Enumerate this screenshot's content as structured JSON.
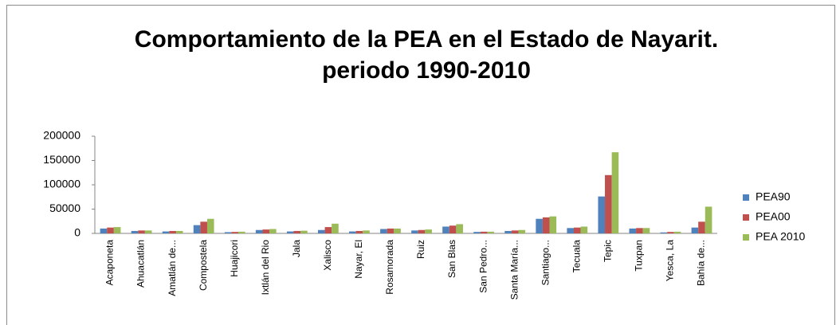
{
  "chart_data": {
    "type": "bar",
    "title": "Comportamiento de la PEA en el Estado de Nayarit.",
    "subtitle": "periodo 1990-2010",
    "categories": [
      "Acaponeta",
      "Ahuacatlán",
      "Amatlán de...",
      "Compostela",
      "Huajicori",
      "Ixtlán del Rio",
      "Jala",
      "Xalisco",
      "Nayar, El",
      "Rosamorada",
      "Ruiz",
      "San Blas",
      "San Pedro...",
      "Santa María...",
      "Santiago...",
      "Tecuala",
      "Tepic",
      "Tuxpan",
      "Yesca, La",
      "Bahía de..."
    ],
    "series": [
      {
        "name": "PEA90",
        "color": "#4f81bd",
        "values": [
          10000,
          5000,
          4000,
          17000,
          2500,
          7000,
          4000,
          7000,
          4000,
          9000,
          6000,
          14000,
          3000,
          5000,
          30000,
          11000,
          76000,
          10000,
          2000,
          12000
        ]
      },
      {
        "name": "PEA00",
        "color": "#c0504d",
        "values": [
          12000,
          6000,
          5000,
          24000,
          3000,
          8000,
          5000,
          13000,
          5000,
          10000,
          7000,
          16000,
          3500,
          6000,
          33000,
          12000,
          120000,
          11000,
          3000,
          24000
        ]
      },
      {
        "name": "PEA 2010",
        "color": "#9bbb59",
        "values": [
          13000,
          6000,
          5000,
          30000,
          3500,
          9000,
          5500,
          20000,
          6000,
          10000,
          8000,
          19000,
          3500,
          7000,
          35000,
          14000,
          167000,
          11000,
          3500,
          55000
        ]
      }
    ],
    "ylim": [
      0,
      200000
    ],
    "yticks": [
      0,
      50000,
      100000,
      150000,
      200000
    ],
    "grid": false,
    "legend": "right"
  }
}
